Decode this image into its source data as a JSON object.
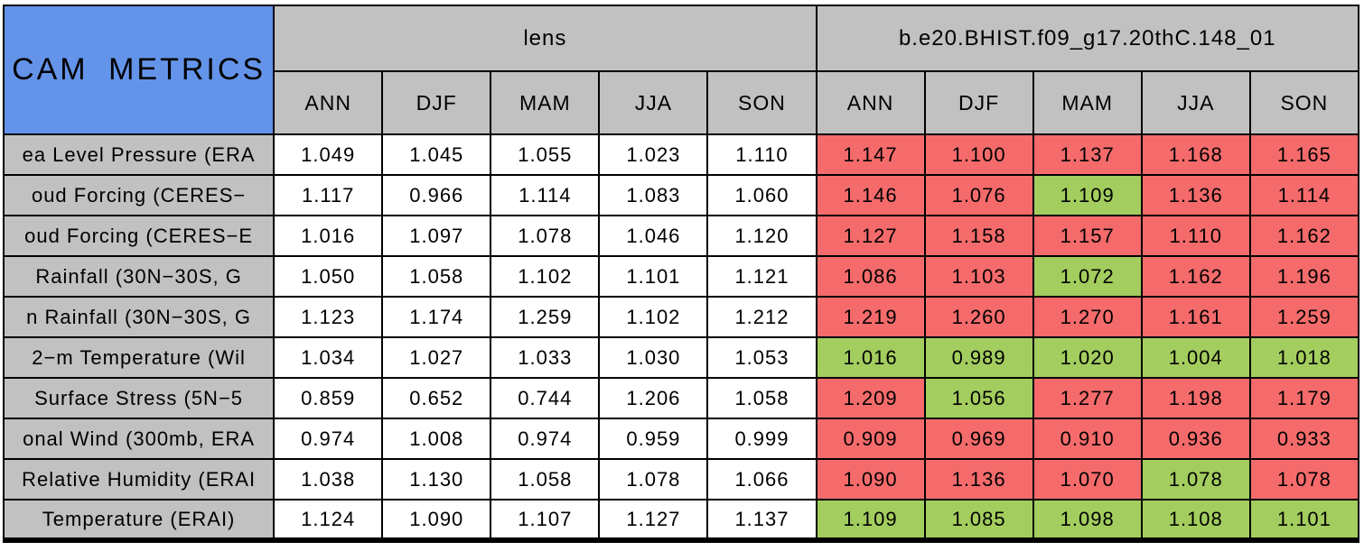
{
  "title": "CAM METRICS",
  "colors": {
    "header_blue": "#6494EA",
    "header_gray": "#C1C1C1",
    "worse_red": "#F56B6B",
    "better_green": "#A3CD5E",
    "neutral_white": "#FFFFFF",
    "border_black": "#000000"
  },
  "chart_data": {
    "type": "table",
    "title": "CAM METRICS",
    "col_groups": [
      {
        "label": "lens",
        "seasons": [
          "ANN",
          "DJF",
          "MAM",
          "JJA",
          "SON"
        ]
      },
      {
        "label": "b.e20.BHIST.f09_g17.20thC.148_01",
        "seasons": [
          "ANN",
          "DJF",
          "MAM",
          "JJA",
          "SON"
        ]
      }
    ],
    "rows": [
      {
        "label": "ea Level Pressure (ERA",
        "lens_values": [
          "1.049",
          "1.045",
          "1.055",
          "1.023",
          "1.110"
        ],
        "case_values": [
          "1.147",
          "1.100",
          "1.137",
          "1.168",
          "1.165"
        ],
        "case_colors": [
          "worse",
          "worse",
          "worse",
          "worse",
          "worse"
        ]
      },
      {
        "label": "oud Forcing (CERES−",
        "lens_values": [
          "1.117",
          "0.966",
          "1.114",
          "1.083",
          "1.060"
        ],
        "case_values": [
          "1.146",
          "1.076",
          "1.109",
          "1.136",
          "1.114"
        ],
        "case_colors": [
          "worse",
          "worse",
          "better",
          "worse",
          "worse"
        ]
      },
      {
        "label": "oud Forcing (CERES−E",
        "lens_values": [
          "1.016",
          "1.097",
          "1.078",
          "1.046",
          "1.120"
        ],
        "case_values": [
          "1.127",
          "1.158",
          "1.157",
          "1.110",
          "1.162"
        ],
        "case_colors": [
          "worse",
          "worse",
          "worse",
          "worse",
          "worse"
        ]
      },
      {
        "label": "Rainfall (30N−30S, G",
        "lens_values": [
          "1.050",
          "1.058",
          "1.102",
          "1.101",
          "1.121"
        ],
        "case_values": [
          "1.086",
          "1.103",
          "1.072",
          "1.162",
          "1.196"
        ],
        "case_colors": [
          "worse",
          "worse",
          "better",
          "worse",
          "worse"
        ]
      },
      {
        "label": "n Rainfall (30N−30S, G",
        "lens_values": [
          "1.123",
          "1.174",
          "1.259",
          "1.102",
          "1.212"
        ],
        "case_values": [
          "1.219",
          "1.260",
          "1.270",
          "1.161",
          "1.259"
        ],
        "case_colors": [
          "worse",
          "worse",
          "worse",
          "worse",
          "worse"
        ]
      },
      {
        "label": "2−m Temperature (Wil",
        "lens_values": [
          "1.034",
          "1.027",
          "1.033",
          "1.030",
          "1.053"
        ],
        "case_values": [
          "1.016",
          "0.989",
          "1.020",
          "1.004",
          "1.018"
        ],
        "case_colors": [
          "better",
          "better",
          "better",
          "better",
          "better"
        ]
      },
      {
        "label": "Surface Stress (5N−5",
        "lens_values": [
          "0.859",
          "0.652",
          "0.744",
          "1.206",
          "1.058"
        ],
        "case_values": [
          "1.209",
          "1.056",
          "1.277",
          "1.198",
          "1.179"
        ],
        "case_colors": [
          "worse",
          "better",
          "worse",
          "worse",
          "worse"
        ]
      },
      {
        "label": "onal Wind (300mb, ERA",
        "lens_values": [
          "0.974",
          "1.008",
          "0.974",
          "0.959",
          "0.999"
        ],
        "case_values": [
          "0.909",
          "0.969",
          "0.910",
          "0.936",
          "0.933"
        ],
        "case_colors": [
          "worse",
          "worse",
          "worse",
          "worse",
          "worse"
        ]
      },
      {
        "label": "Relative Humidity (ERAI",
        "lens_values": [
          "1.038",
          "1.130",
          "1.058",
          "1.078",
          "1.066"
        ],
        "case_values": [
          "1.090",
          "1.136",
          "1.070",
          "1.078",
          "1.078"
        ],
        "case_colors": [
          "worse",
          "worse",
          "worse",
          "better",
          "worse"
        ]
      },
      {
        "label": "Temperature (ERAI)",
        "lens_values": [
          "1.124",
          "1.090",
          "1.107",
          "1.127",
          "1.137"
        ],
        "case_values": [
          "1.109",
          "1.085",
          "1.098",
          "1.108",
          "1.101"
        ],
        "case_colors": [
          "better",
          "better",
          "better",
          "better",
          "better"
        ]
      }
    ]
  }
}
